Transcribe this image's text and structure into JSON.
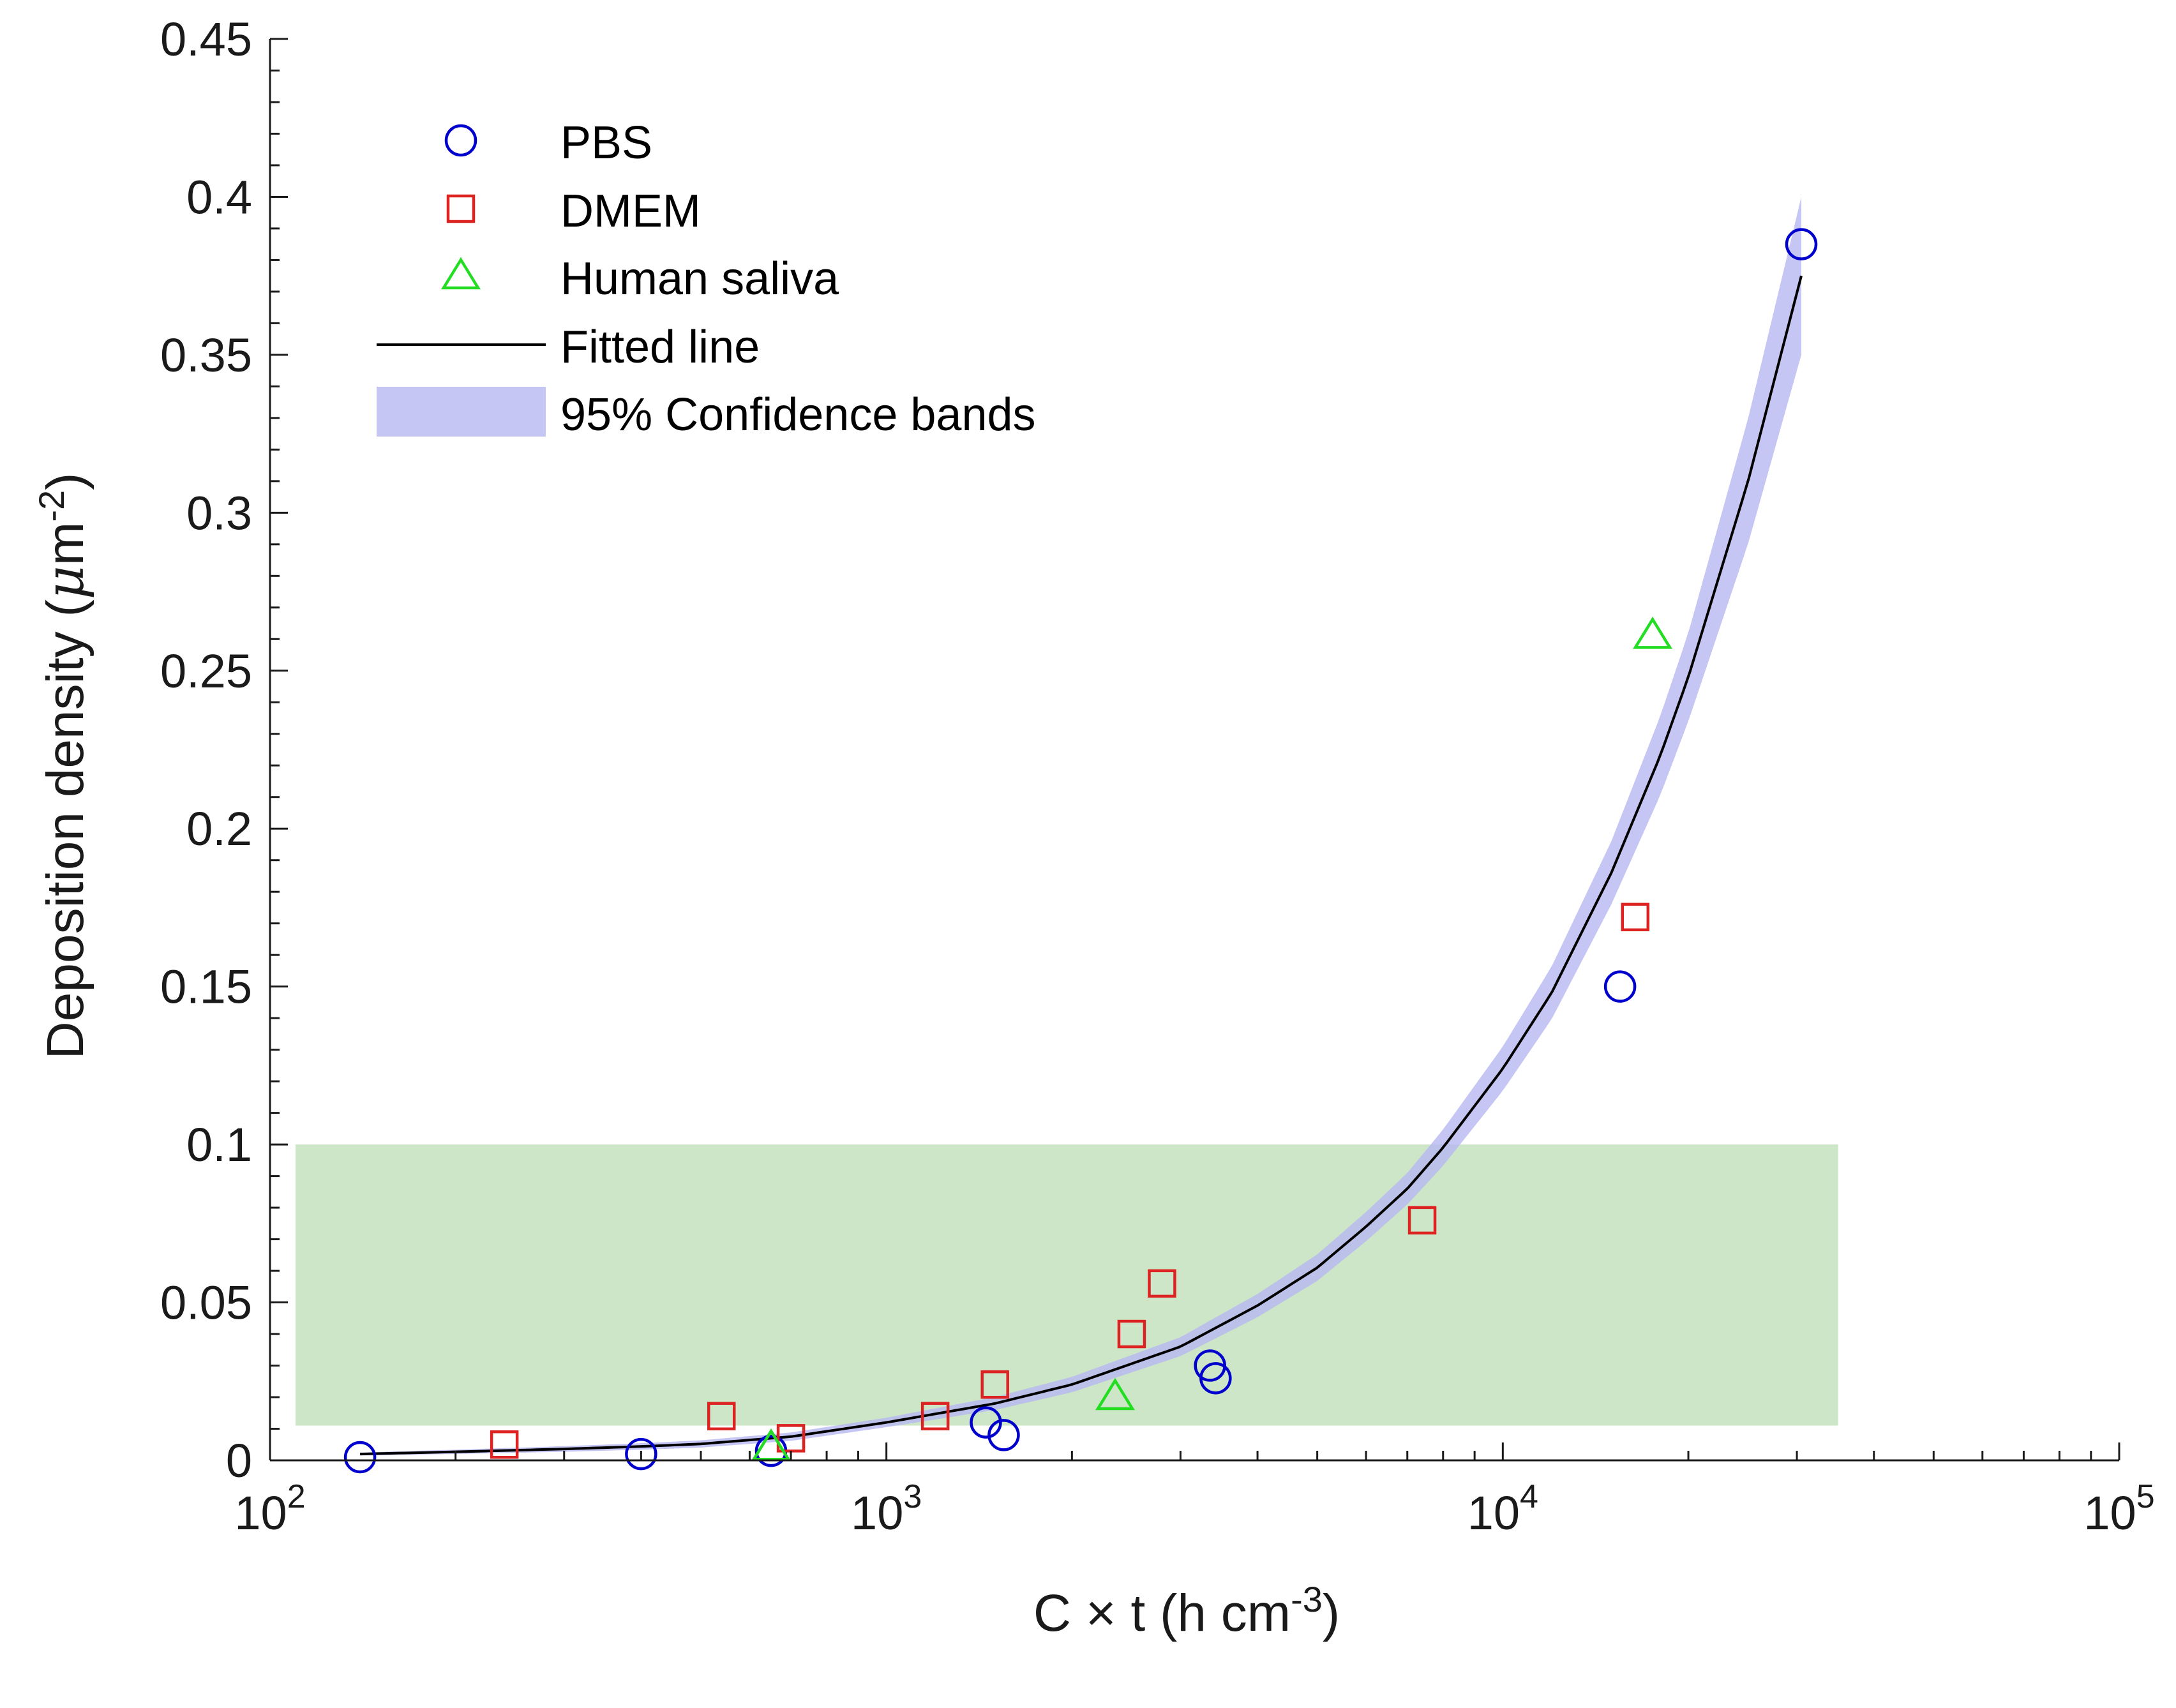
{
  "chart_data": {
    "type": "scatter",
    "x_scale": "log",
    "xlim": [
      100,
      100000
    ],
    "ylim": [
      0,
      0.45
    ],
    "xlabel": {
      "base": "C × t (h cm",
      "sup": "-3",
      "tail": ")"
    },
    "ylabel": {
      "base": "Deposition density (",
      "mu": "μ",
      "unit": "m",
      "sup": "-2",
      "tail": ")"
    },
    "x_ticks": [
      {
        "base": "10",
        "exp": "2",
        "value": 100
      },
      {
        "base": "10",
        "exp": "3",
        "value": 1000
      },
      {
        "base": "10",
        "exp": "4",
        "value": 10000
      },
      {
        "base": "10",
        "exp": "5",
        "value": 100000
      }
    ],
    "y_ticks": [
      {
        "label": "0",
        "value": 0
      },
      {
        "label": "0.05",
        "value": 0.05
      },
      {
        "label": "0.1",
        "value": 0.1
      },
      {
        "label": "0.15",
        "value": 0.15
      },
      {
        "label": "0.2",
        "value": 0.2
      },
      {
        "label": "0.25",
        "value": 0.25
      },
      {
        "label": "0.3",
        "value": 0.3
      },
      {
        "label": "0.35",
        "value": 0.35
      },
      {
        "label": "0.4",
        "value": 0.4
      },
      {
        "label": "0.45",
        "value": 0.45
      }
    ],
    "series": [
      {
        "name": "PBS",
        "marker": "circle",
        "color": "#0000cc",
        "points": [
          [
            140,
            0.001
          ],
          [
            400,
            0.002
          ],
          [
            650,
            0.003
          ],
          [
            1450,
            0.012
          ],
          [
            1550,
            0.008
          ],
          [
            3350,
            0.03
          ],
          [
            3420,
            0.026
          ],
          [
            15500,
            0.15
          ],
          [
            30500,
            0.385
          ]
        ]
      },
      {
        "name": "DMEM",
        "marker": "square",
        "color": "#dd2222",
        "points": [
          [
            240,
            0.005
          ],
          [
            540,
            0.014
          ],
          [
            700,
            0.007
          ],
          [
            1200,
            0.014
          ],
          [
            1500,
            0.024
          ],
          [
            2500,
            0.04
          ],
          [
            2800,
            0.056
          ],
          [
            7400,
            0.076
          ],
          [
            16400,
            0.172
          ]
        ]
      },
      {
        "name": "Human saliva",
        "marker": "triangle",
        "color": "#22dd22",
        "points": [
          [
            650,
            0.004
          ],
          [
            2350,
            0.02
          ],
          [
            17500,
            0.261
          ]
        ]
      },
      {
        "name": "Fitted line",
        "type": "line",
        "color": "#000000",
        "points": [
          [
            140,
            0.002
          ],
          [
            200,
            0.0027
          ],
          [
            300,
            0.0036
          ],
          [
            400,
            0.0044
          ],
          [
            500,
            0.0052
          ],
          [
            700,
            0.0075
          ],
          [
            1000,
            0.012
          ],
          [
            1500,
            0.018
          ],
          [
            2000,
            0.024
          ],
          [
            3000,
            0.036
          ],
          [
            4000,
            0.049
          ],
          [
            5000,
            0.061
          ],
          [
            6000,
            0.074
          ],
          [
            7000,
            0.086
          ],
          [
            8000,
            0.099
          ],
          [
            10000,
            0.124
          ],
          [
            12000,
            0.148
          ],
          [
            15000,
            0.186
          ],
          [
            18000,
            0.223
          ],
          [
            20000,
            0.248
          ],
          [
            25000,
            0.31
          ],
          [
            30500,
            0.375
          ]
        ]
      },
      {
        "name": "95% Confidence bands",
        "type": "band",
        "color": "#b8b8f2",
        "half_width": [
          [
            140,
            0.0005
          ],
          [
            1000,
            0.0015
          ],
          [
            3000,
            0.003
          ],
          [
            7000,
            0.005
          ],
          [
            10000,
            0.007
          ],
          [
            15000,
            0.01
          ],
          [
            20000,
            0.014
          ],
          [
            30500,
            0.025
          ]
        ]
      }
    ],
    "shaded_region": {
      "x": [
        110,
        35000
      ],
      "y": [
        0.011,
        0.1
      ],
      "color": "#cde6c7"
    },
    "legend": {
      "placement": "top-left",
      "entries": [
        "PBS",
        "DMEM",
        "Human saliva",
        "Fitted line",
        "95% Confidence bands"
      ]
    }
  }
}
